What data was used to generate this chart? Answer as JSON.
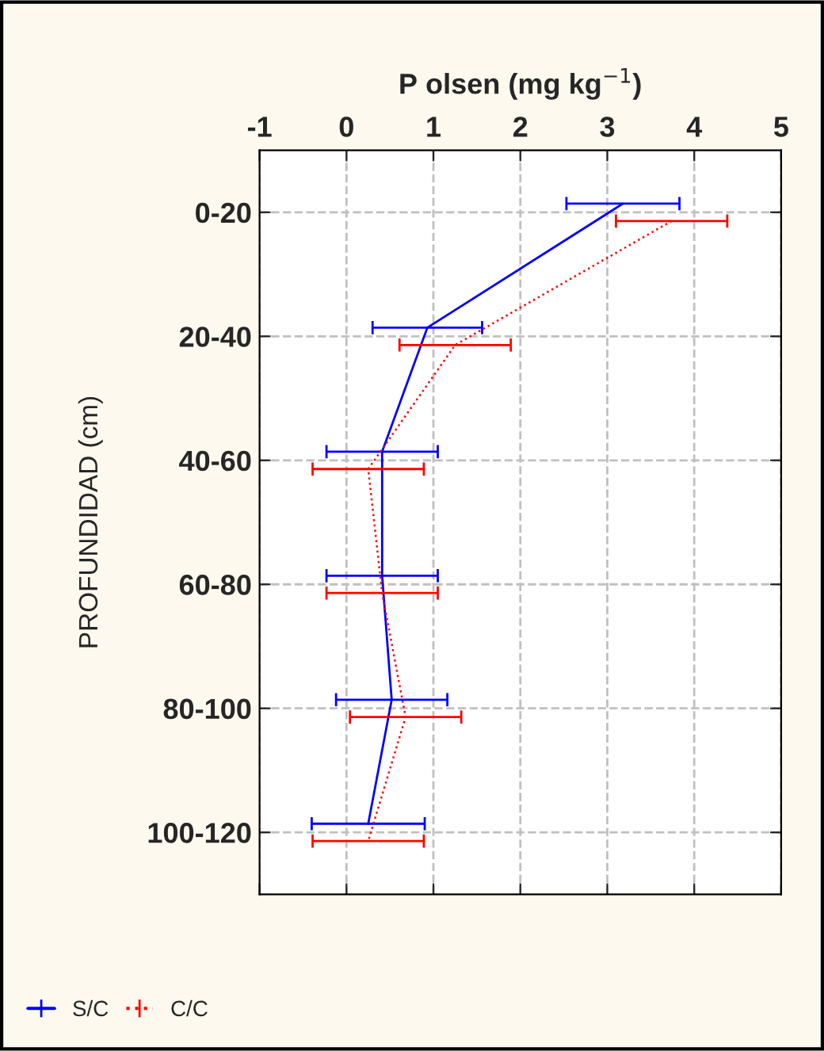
{
  "chart_data": {
    "type": "line",
    "orientation": "horizontal",
    "xlabel": "P olsen (mg kg$^{−1}$)",
    "ylabel": "PROFUNDIDAD (cm)",
    "categories": [
      "0-20",
      "20-40",
      "40-60",
      "60-80",
      "80-100",
      "100-120"
    ],
    "xlim": [
      -1,
      5
    ],
    "xticks": [
      -1,
      0,
      1,
      2,
      3,
      4,
      5
    ],
    "grid": true,
    "legend": "bottom left",
    "marker": "none",
    "series": [
      {
        "name": "S/C",
        "color": "#0000ff",
        "line_style": "solid",
        "values": [
          3.18,
          0.93,
          0.41,
          0.41,
          0.52,
          0.25
        ],
        "errors": [
          0.65,
          0.63,
          0.64,
          0.64,
          0.64,
          0.65
        ]
      },
      {
        "name": "C/C",
        "color": "#ff0000",
        "line_style": "dotted",
        "values": [
          3.74,
          1.25,
          0.25,
          0.41,
          0.68,
          0.25
        ],
        "errors": [
          0.64,
          0.64,
          0.64,
          0.64,
          0.64,
          0.64
        ]
      }
    ]
  }
}
